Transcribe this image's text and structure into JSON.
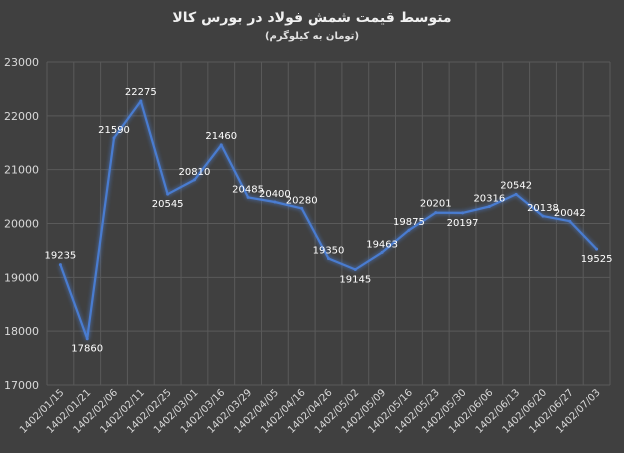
{
  "chart_data": {
    "type": "line",
    "title": "متوسط قیمت شمش فولاد در بورس کالا",
    "subtitle": "(تومان به کیلوگرم)",
    "ylim": [
      17000,
      23000
    ],
    "yticks": [
      17000,
      18000,
      19000,
      20000,
      21000,
      22000,
      23000
    ],
    "grid": true,
    "categories": [
      "1402/01/15",
      "1402/01/21",
      "1402/02/06",
      "1402/02/11",
      "1402/02/25",
      "1402/03/01",
      "1402/03/16",
      "1402/03/29",
      "1402/04/05",
      "1402/04/16",
      "1402/04/26",
      "1402/05/02",
      "1402/05/09",
      "1402/05/16",
      "1402/05/23",
      "1402/05/30",
      "1402/06/06",
      "1402/06/13",
      "1402/06/20",
      "1402/06/27",
      "1402/07/03"
    ],
    "values": [
      19235,
      17860,
      21590,
      22275,
      20545,
      20810,
      21460,
      20485,
      20400,
      20280,
      19350,
      19145,
      19463,
      19875,
      20201,
      20197,
      20316,
      20542,
      20138,
      20042,
      19525
    ],
    "line_color": "#4a7bd0"
  }
}
